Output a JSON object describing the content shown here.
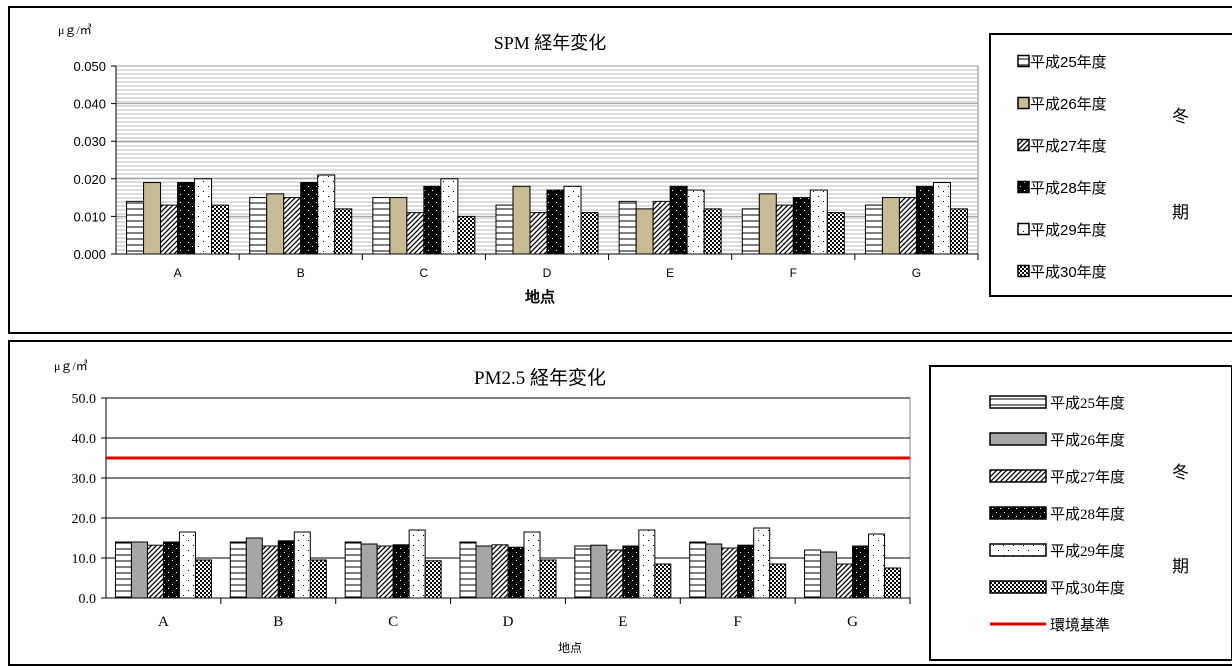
{
  "chart_data": [
    {
      "type": "bar",
      "title": "SPM 経年変化",
      "unit_label": "μｇ/㎥",
      "xlabel": "地点",
      "ylim": [
        0,
        0.05
      ],
      "yticks": [
        "0.000",
        "0.010",
        "0.020",
        "0.030",
        "0.040",
        "0.050"
      ],
      "categories": [
        "A",
        "B",
        "C",
        "D",
        "E",
        "F",
        "G"
      ],
      "season_label_top": "冬",
      "season_label_bottom": "期",
      "legend_position": "right",
      "grid": true,
      "series": [
        {
          "name": "平成25年度",
          "pattern": "hlines",
          "values": [
            0.014,
            0.015,
            0.015,
            0.013,
            0.014,
            0.012,
            0.013
          ]
        },
        {
          "name": "平成26年度",
          "pattern": "tan",
          "values": [
            0.019,
            0.016,
            0.015,
            0.018,
            0.012,
            0.016,
            0.015
          ]
        },
        {
          "name": "平成27年度",
          "pattern": "diag",
          "values": [
            0.013,
            0.015,
            0.011,
            0.011,
            0.014,
            0.013,
            0.015
          ]
        },
        {
          "name": "平成28年度",
          "pattern": "black",
          "values": [
            0.019,
            0.019,
            0.018,
            0.017,
            0.018,
            0.015,
            0.018
          ]
        },
        {
          "name": "平成29年度",
          "pattern": "white",
          "values": [
            0.02,
            0.021,
            0.02,
            0.018,
            0.017,
            0.017,
            0.019
          ]
        },
        {
          "name": "平成30年度",
          "pattern": "check",
          "values": [
            0.013,
            0.012,
            0.01,
            0.011,
            0.012,
            0.011,
            0.012
          ]
        }
      ]
    },
    {
      "type": "bar",
      "title": "PM2.5 経年変化",
      "unit_label": "μｇ/㎥",
      "xlabel": "地点",
      "ylim": [
        0,
        50
      ],
      "yticks": [
        "0.0",
        "10.0",
        "20.0",
        "30.0",
        "40.0",
        "50.0"
      ],
      "categories": [
        "A",
        "B",
        "C",
        "D",
        "E",
        "F",
        "G"
      ],
      "season_label_top": "冬",
      "season_label_bottom": "期",
      "legend_position": "right",
      "grid": true,
      "reference_line": {
        "name": "環境基準",
        "value": 35,
        "color": "#e00000"
      },
      "series": [
        {
          "name": "平成25年度",
          "pattern": "hlines",
          "values": [
            14.0,
            14.0,
            14.0,
            14.0,
            13.0,
            14.0,
            12.0
          ]
        },
        {
          "name": "平成26年度",
          "pattern": "gray",
          "values": [
            14.0,
            15.0,
            13.5,
            13.0,
            13.2,
            13.5,
            11.5
          ]
        },
        {
          "name": "平成27年度",
          "pattern": "diag",
          "values": [
            13.2,
            13.0,
            13.0,
            13.3,
            12.0,
            12.5,
            8.5
          ]
        },
        {
          "name": "平成28年度",
          "pattern": "black",
          "values": [
            14.0,
            14.3,
            13.3,
            12.7,
            13.0,
            13.2,
            13.0
          ]
        },
        {
          "name": "平成29年度",
          "pattern": "white",
          "values": [
            16.5,
            16.5,
            17.0,
            16.5,
            17.0,
            17.5,
            16.0
          ]
        },
        {
          "name": "平成30年度",
          "pattern": "check",
          "values": [
            9.5,
            9.5,
            9.3,
            9.5,
            8.5,
            8.5,
            7.5
          ]
        }
      ]
    }
  ]
}
